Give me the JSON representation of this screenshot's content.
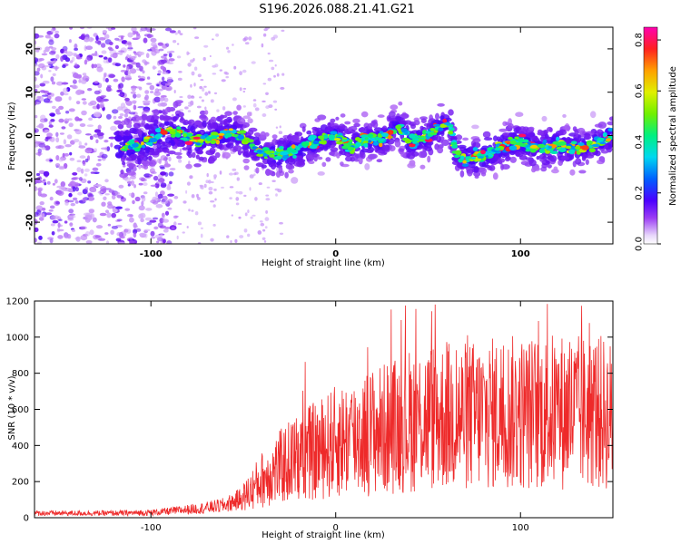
{
  "title": "S196.2026.088.21.41.G21",
  "colors": {
    "snr_line": "#ee2a2a",
    "axis": "#000000",
    "background": "#ffffff"
  },
  "chart_data": [
    {
      "type": "heatmap",
      "name": "spectrogram",
      "xlabel": "Height of straight line (km)",
      "ylabel": "Frequency (Hz)",
      "xlim": [
        -163,
        150
      ],
      "ylim": [
        -25,
        25
      ],
      "x_ticks": [
        -100,
        0,
        100
      ],
      "x_tick_labels": [
        "-100",
        "0",
        "100"
      ],
      "y_ticks": [
        20,
        10,
        0,
        -10,
        -20
      ],
      "y_tick_labels": [
        "20",
        "10",
        "0",
        "-10",
        "-20"
      ],
      "ridge": {
        "description": "dominant frequency track vs height",
        "x": [
          -115,
          -105,
          -95,
          -85,
          -75,
          -65,
          -55,
          -50,
          -45,
          -40,
          -30,
          -20,
          -15,
          -10,
          -5,
          0,
          5,
          10,
          15,
          20,
          25,
          30,
          35,
          40,
          45,
          50,
          55,
          60,
          63,
          65,
          70,
          75,
          80,
          85,
          90,
          95,
          100,
          105,
          110,
          115,
          120,
          125,
          130,
          135,
          140,
          148
        ],
        "y": [
          -2.5,
          -2,
          0.5,
          1,
          -1,
          -0.5,
          1,
          -1,
          -2.5,
          -4,
          -4.5,
          -3,
          -2,
          -1.5,
          -0.5,
          0,
          -1.5,
          -2.5,
          -1,
          -0.5,
          -1,
          1,
          2,
          -1.5,
          -1,
          0,
          1.5,
          3,
          1.5,
          -4.5,
          -5.5,
          -5,
          -4.5,
          -4,
          -2.5,
          -2,
          -1.5,
          -2.5,
          -2.5,
          -3,
          -2,
          -3,
          -2.5,
          -3,
          -2,
          0
        ]
      },
      "colorbar": {
        "label": "Normalized spectral amplitude",
        "min": 0,
        "max": 0.85,
        "ticks": [
          0.0,
          0.2,
          0.4,
          0.6,
          0.8
        ],
        "tick_labels": [
          "0.0",
          "0.2",
          "0.4",
          "0.6",
          "0.8"
        ]
      }
    },
    {
      "type": "line",
      "name": "snr",
      "xlabel": "Height of straight line (km)",
      "ylabel": "SNR (10 * v/v)",
      "xlim": [
        -163,
        150
      ],
      "ylim": [
        0,
        1200
      ],
      "x_ticks": [
        -100,
        0,
        100
      ],
      "x_tick_labels": [
        "-100",
        "0",
        "100"
      ],
      "y_ticks": [
        0,
        200,
        400,
        600,
        800,
        1000,
        1200
      ],
      "y_tick_labels": [
        "0",
        "200",
        "400",
        "600",
        "800",
        "1000",
        "1200"
      ],
      "envelope": {
        "description": "approximate mean SNR level vs height (signal is highly noisy around this level)",
        "x": [
          -163,
          -140,
          -120,
          -100,
          -85,
          -70,
          -60,
          -50,
          -45,
          -40,
          -30,
          -20,
          -10,
          0,
          10,
          20,
          30,
          40,
          50,
          60,
          70,
          80,
          90,
          100,
          110,
          120,
          130,
          140,
          150
        ],
        "y": [
          25,
          25,
          25,
          28,
          40,
          55,
          70,
          110,
          160,
          210,
          280,
          340,
          370,
          420,
          450,
          480,
          500,
          540,
          560,
          560,
          560,
          570,
          580,
          580,
          580,
          590,
          580,
          590,
          560
        ]
      },
      "peak_max": 1200
    }
  ]
}
